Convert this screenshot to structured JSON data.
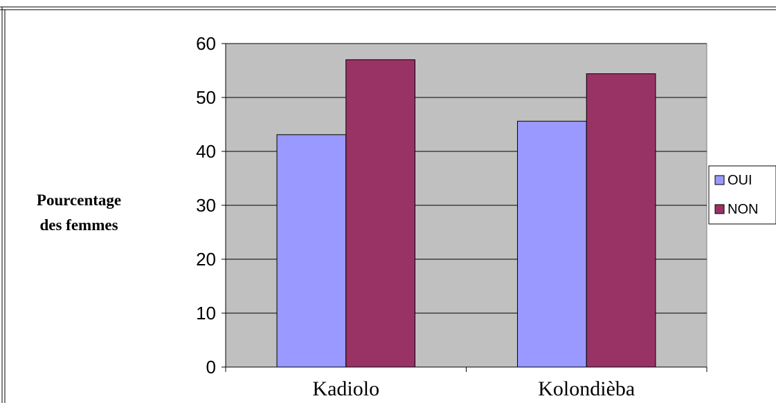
{
  "chart_data": {
    "type": "bar",
    "title": "",
    "xlabel": "",
    "ylabel_lines": [
      "Pourcentage",
      "des femmes"
    ],
    "categories": [
      "Kadiolo",
      "Kolondièba"
    ],
    "series": [
      {
        "name": "OUI",
        "values": [
          43.1,
          45.6
        ],
        "color": "#9999ff"
      },
      {
        "name": "NON",
        "values": [
          57.0,
          54.4
        ],
        "color": "#993366"
      }
    ],
    "ylim": [
      0,
      60
    ],
    "yticks": [
      0,
      10,
      20,
      30,
      40,
      50,
      60
    ],
    "grid": true,
    "plot_background": "#c0c0c0",
    "legend_position": "right"
  }
}
